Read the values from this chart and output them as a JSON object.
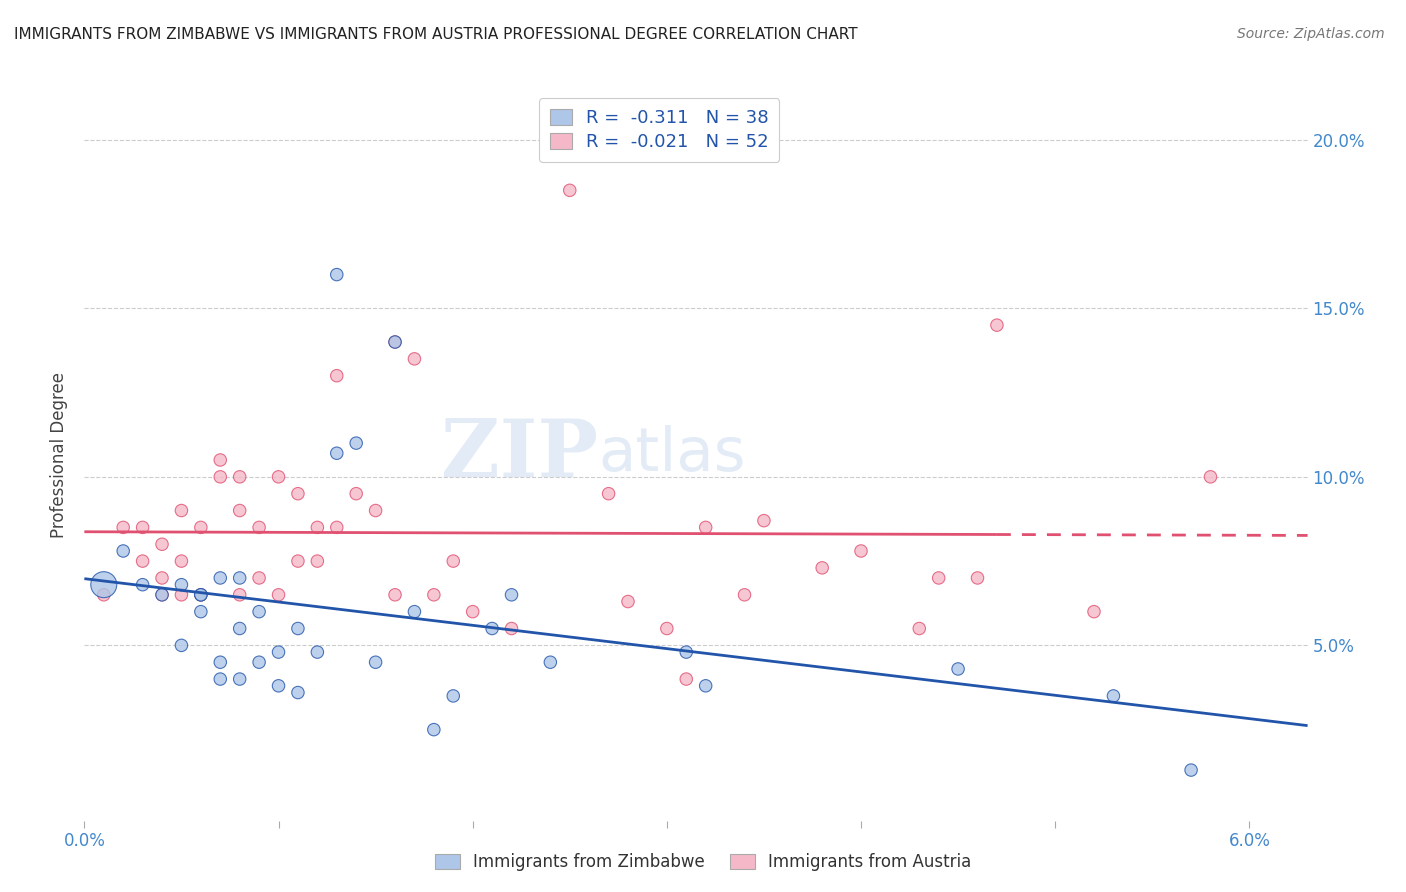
{
  "title": "IMMIGRANTS FROM ZIMBABWE VS IMMIGRANTS FROM AUSTRIA PROFESSIONAL DEGREE CORRELATION CHART",
  "source": "Source: ZipAtlas.com",
  "ylabel": "Professional Degree",
  "xlim": [
    0.0,
    0.063
  ],
  "ylim": [
    -0.002,
    0.215
  ],
  "color_zimbabwe": "#aec6e8",
  "color_austria": "#f5b8c8",
  "line_color_zimbabwe": "#2255aa",
  "line_color_austria": "#e05070",
  "background_color": "#ffffff",
  "legend_r1": "R =  -0.311   N = 38",
  "legend_r2": "R =  -0.021   N = 52",
  "zimbabwe_x": [
    0.001,
    0.002,
    0.003,
    0.004,
    0.005,
    0.005,
    0.006,
    0.006,
    0.006,
    0.007,
    0.007,
    0.007,
    0.008,
    0.008,
    0.008,
    0.009,
    0.009,
    0.01,
    0.01,
    0.011,
    0.011,
    0.012,
    0.013,
    0.013,
    0.014,
    0.015,
    0.016,
    0.017,
    0.018,
    0.019,
    0.021,
    0.022,
    0.024,
    0.031,
    0.032,
    0.045,
    0.053,
    0.057
  ],
  "zimbabwe_y": [
    0.068,
    0.078,
    0.068,
    0.065,
    0.05,
    0.068,
    0.06,
    0.065,
    0.065,
    0.04,
    0.045,
    0.07,
    0.04,
    0.055,
    0.07,
    0.045,
    0.06,
    0.038,
    0.048,
    0.036,
    0.055,
    0.048,
    0.107,
    0.16,
    0.11,
    0.045,
    0.14,
    0.06,
    0.025,
    0.035,
    0.055,
    0.065,
    0.045,
    0.048,
    0.038,
    0.043,
    0.035,
    0.013
  ],
  "zimbabwe_sizes": [
    350,
    80,
    80,
    80,
    80,
    80,
    80,
    80,
    80,
    80,
    80,
    80,
    80,
    80,
    80,
    80,
    80,
    80,
    80,
    80,
    80,
    80,
    80,
    80,
    80,
    80,
    80,
    80,
    80,
    80,
    80,
    80,
    80,
    80,
    80,
    80,
    80,
    80
  ],
  "austria_x": [
    0.001,
    0.002,
    0.003,
    0.003,
    0.004,
    0.004,
    0.004,
    0.005,
    0.005,
    0.005,
    0.006,
    0.006,
    0.007,
    0.007,
    0.008,
    0.008,
    0.008,
    0.009,
    0.009,
    0.01,
    0.01,
    0.011,
    0.011,
    0.012,
    0.012,
    0.013,
    0.013,
    0.014,
    0.015,
    0.016,
    0.016,
    0.017,
    0.018,
    0.019,
    0.02,
    0.022,
    0.025,
    0.027,
    0.028,
    0.03,
    0.031,
    0.032,
    0.034,
    0.035,
    0.038,
    0.04,
    0.043,
    0.044,
    0.046,
    0.047,
    0.052,
    0.058
  ],
  "austria_y": [
    0.065,
    0.085,
    0.075,
    0.085,
    0.065,
    0.07,
    0.08,
    0.065,
    0.075,
    0.09,
    0.065,
    0.085,
    0.1,
    0.105,
    0.065,
    0.09,
    0.1,
    0.07,
    0.085,
    0.065,
    0.1,
    0.075,
    0.095,
    0.075,
    0.085,
    0.085,
    0.13,
    0.095,
    0.09,
    0.065,
    0.14,
    0.135,
    0.065,
    0.075,
    0.06,
    0.055,
    0.185,
    0.095,
    0.063,
    0.055,
    0.04,
    0.085,
    0.065,
    0.087,
    0.073,
    0.078,
    0.055,
    0.07,
    0.07,
    0.145,
    0.06,
    0.1
  ],
  "austria_sizes": [
    80,
    80,
    80,
    80,
    80,
    80,
    80,
    80,
    80,
    80,
    80,
    80,
    80,
    80,
    80,
    80,
    80,
    80,
    80,
    80,
    80,
    80,
    80,
    80,
    80,
    80,
    80,
    80,
    80,
    80,
    80,
    80,
    80,
    80,
    80,
    80,
    80,
    80,
    80,
    80,
    80,
    80,
    80,
    80,
    80,
    80,
    80,
    80,
    80,
    80,
    80,
    80
  ]
}
